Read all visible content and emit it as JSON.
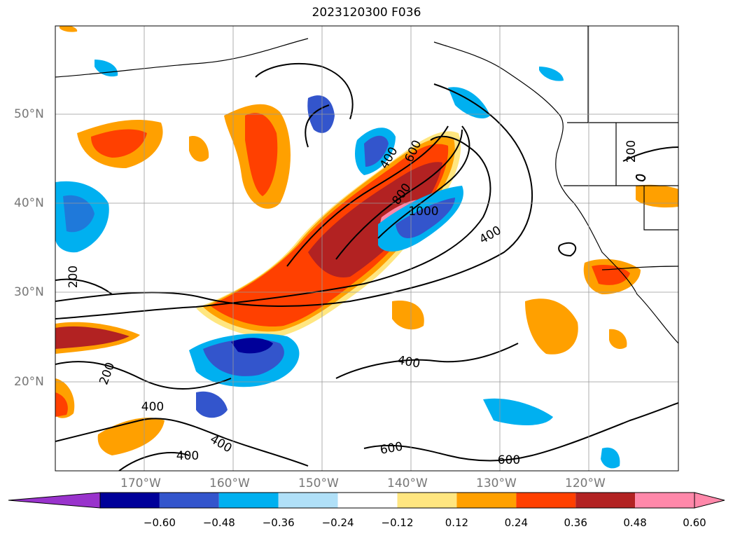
{
  "title": "2023120300 F036",
  "lat_labels": [
    "50°N",
    "40°N",
    "30°N",
    "20°N"
  ],
  "lon_labels": [
    "170°W",
    "160°W",
    "150°W",
    "140°W",
    "130°W",
    "120°W"
  ],
  "contour_labels": [
    "600",
    "400",
    "800",
    "1000",
    "400",
    "200",
    "200",
    "400",
    "200",
    "400",
    "400",
    "400",
    "600",
    "600"
  ],
  "colorbar": {
    "ticks": [
      "−0.60",
      "−0.48",
      "−0.36",
      "−0.24",
      "−0.12",
      "0.12",
      "0.24",
      "0.36",
      "0.48",
      "0.60"
    ],
    "colors": [
      "#9933cc",
      "#000099",
      "#3355cc",
      "#00b0f0",
      "#b0e0f8",
      "#ffffff",
      "#ffe680",
      "#ffa000",
      "#ff4000",
      "#b22222",
      "#ff88aa",
      "#ff88aa"
    ]
  }
}
